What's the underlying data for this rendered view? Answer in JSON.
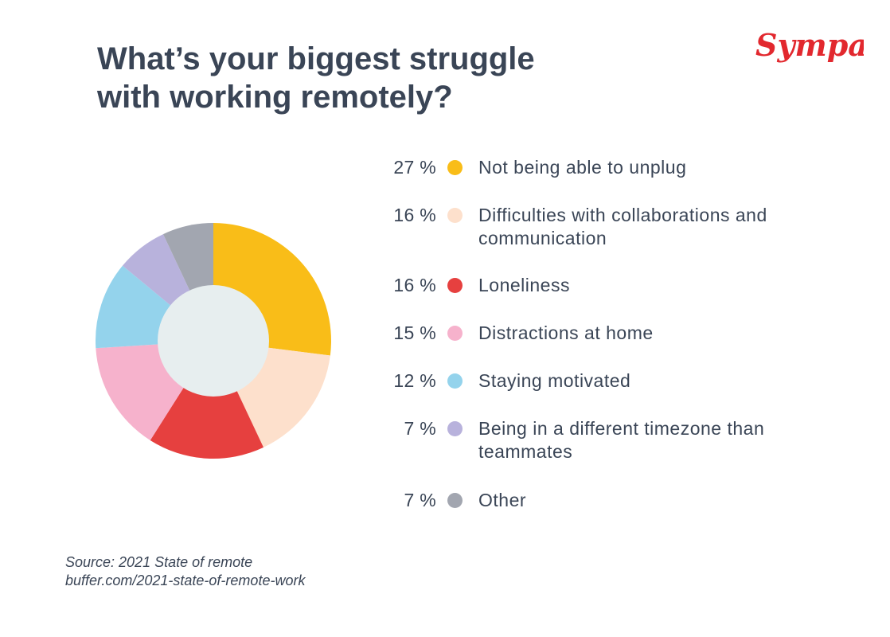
{
  "title": {
    "line1": "What’s your biggest struggle",
    "line2": "with working remotely?"
  },
  "logo": {
    "text": "Sympa",
    "color": "#e2282e"
  },
  "source": {
    "line1": "Source: 2021 State of remote",
    "line2": "buffer.com/2021-state-of-remote-work"
  },
  "chart_data": {
    "type": "pie",
    "title": "What’s your biggest struggle with working remotely?",
    "donut": true,
    "legend_position": "right",
    "unit": "%",
    "slices": [
      {
        "label": "Not being able to unplug",
        "value": 27,
        "value_label": "27 %",
        "color": "#f9bd18"
      },
      {
        "label": "Difficulties with collaborations and communication",
        "value": 16,
        "value_label": "16 %",
        "color": "#fde0cc"
      },
      {
        "label": "Loneliness",
        "value": 16,
        "value_label": "16 %",
        "color": "#e6403f"
      },
      {
        "label": "Distractions at home",
        "value": 15,
        "value_label": "15 %",
        "color": "#f6b2cc"
      },
      {
        "label": "Staying motivated",
        "value": 12,
        "value_label": "12 %",
        "color": "#94d3ec"
      },
      {
        "label": "Being in a different timezone than teammates",
        "value": 7,
        "value_label": "7 %",
        "color": "#b8b2dc"
      },
      {
        "label": "Other",
        "value": 7,
        "value_label": "7 %",
        "color": "#a2a6b0"
      }
    ],
    "hole_color": "#e7eeef"
  }
}
